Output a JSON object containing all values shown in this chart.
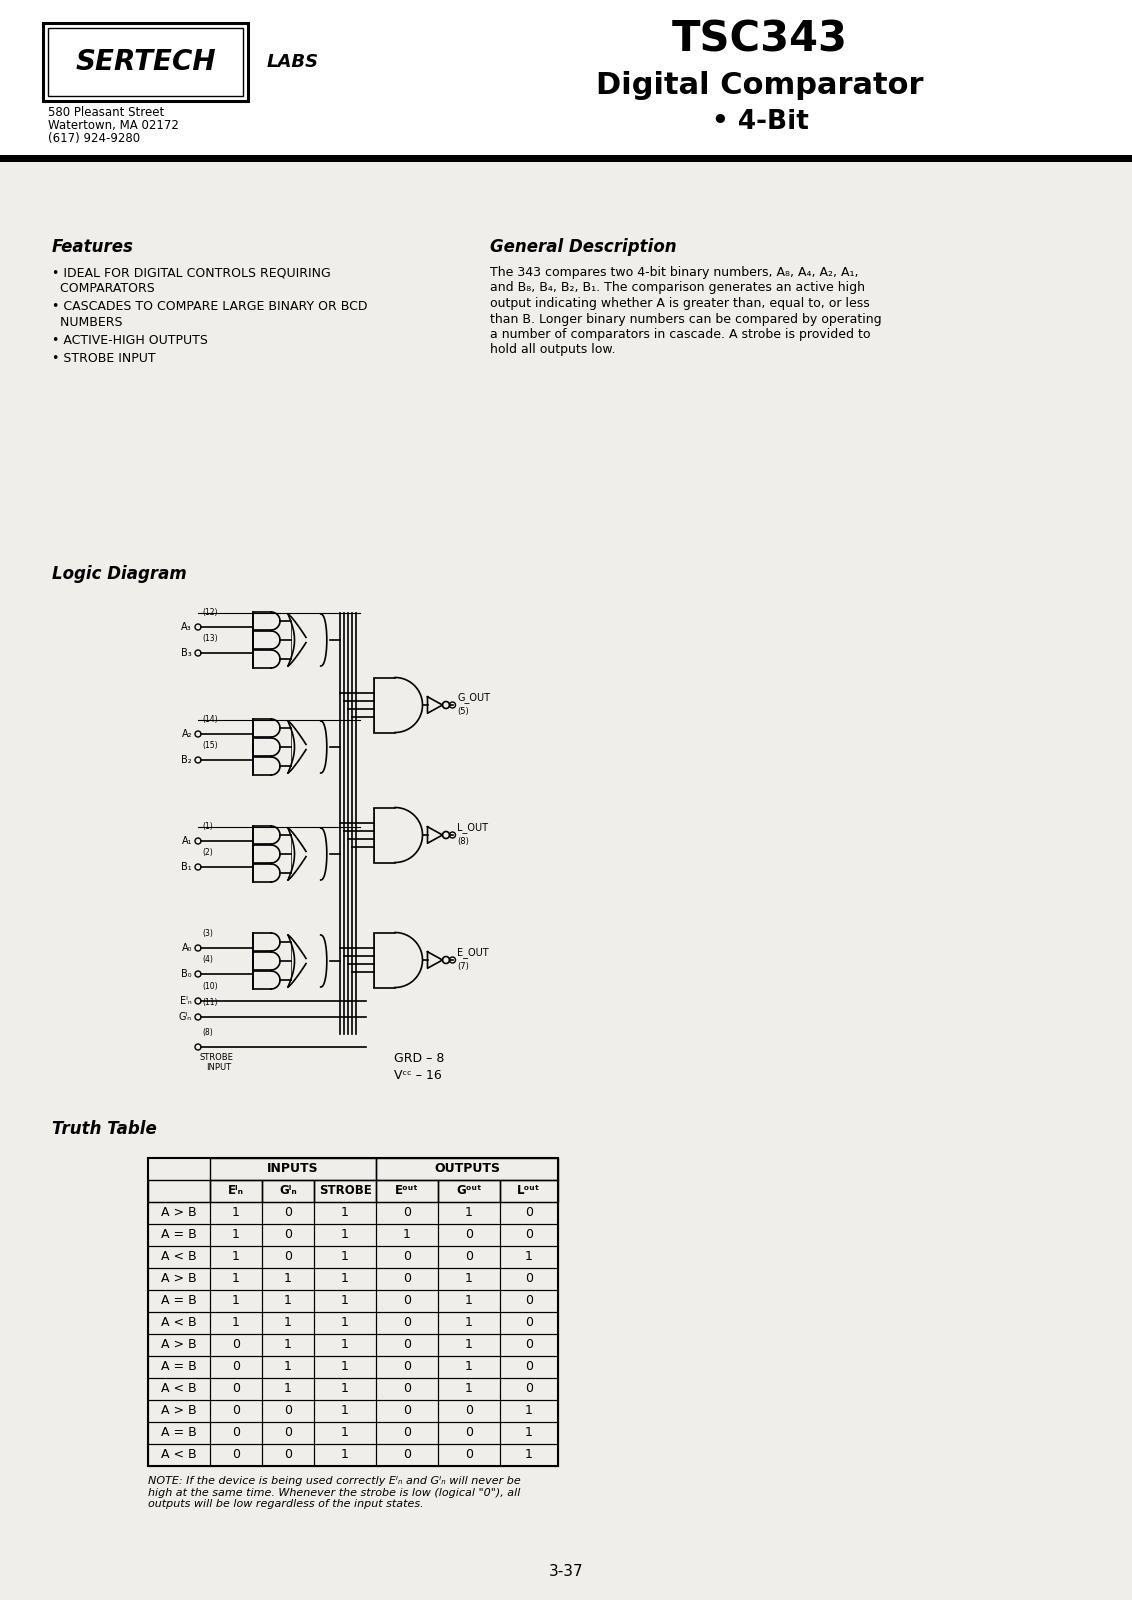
{
  "bg_color": "#f0eeea",
  "header_bg": "#ffffff",
  "company_addr1": "580 Pleasant Street",
  "company_addr2": "Watertown, MA 02172",
  "company_addr3": "(617) 924-9280",
  "title_line1": "TSC343",
  "title_line2": "Digital Comparator",
  "title_line3": "• 4-Bit",
  "features_title": "Features",
  "bullet_items": [
    "IDEAL FOR DIGITAL CONTROLS REQUIRING\n  COMPARATORS",
    "CASCADES TO COMPARE LARGE BINARY OR BCD\n  NUMBERS",
    "ACTIVE-HIGH OUTPUTS",
    "STROBE INPUT"
  ],
  "gen_desc_title": "General Description",
  "gen_desc_lines": [
    "The 343 compares two 4-bit binary numbers, A₈, A₄, A₂, A₁,",
    "and B₈, B₄, B₂, B₁. The comparison generates an active high",
    "output indicating whether A is greater than, equal to, or less",
    "than B. Longer binary numbers can be compared by operating",
    "a number of comparators in cascade. A strobe is provided to",
    "hold all outputs low."
  ],
  "logic_diag_title": "Logic Diagram",
  "truth_table_title": "Truth Table",
  "truth_rows": [
    [
      "A > B",
      "1",
      "0",
      "1",
      "0",
      "1",
      "0"
    ],
    [
      "A = B",
      "1",
      "0",
      "1",
      "1",
      "0",
      "0"
    ],
    [
      "A < B",
      "1",
      "0",
      "1",
      "0",
      "0",
      "1"
    ],
    [
      "A > B",
      "1",
      "1",
      "1",
      "0",
      "1",
      "0"
    ],
    [
      "A = B",
      "1",
      "1",
      "1",
      "0",
      "1",
      "0"
    ],
    [
      "A < B",
      "1",
      "1",
      "1",
      "0",
      "1",
      "0"
    ],
    [
      "A > B",
      "0",
      "1",
      "1",
      "0",
      "1",
      "0"
    ],
    [
      "A = B",
      "0",
      "1",
      "1",
      "0",
      "1",
      "0"
    ],
    [
      "A < B",
      "0",
      "1",
      "1",
      "0",
      "1",
      "0"
    ],
    [
      "A > B",
      "0",
      "0",
      "1",
      "0",
      "0",
      "1"
    ],
    [
      "A = B",
      "0",
      "0",
      "1",
      "0",
      "0",
      "1"
    ],
    [
      "A < B",
      "0",
      "0",
      "1",
      "0",
      "0",
      "1"
    ]
  ],
  "page_num": "3-37"
}
